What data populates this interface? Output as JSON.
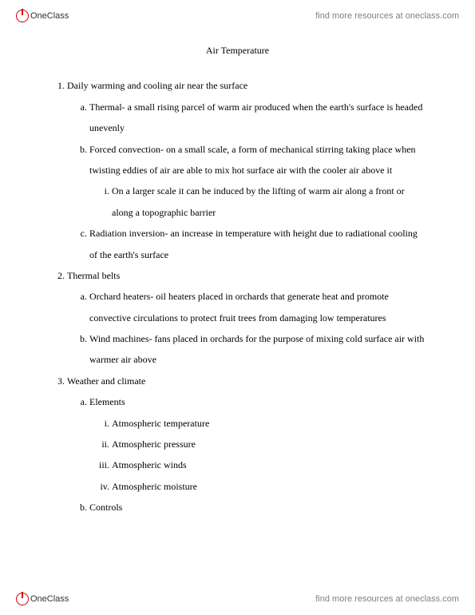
{
  "brand": {
    "name": "OneClass",
    "link_text": "find more resources at oneclass.com"
  },
  "doc": {
    "title": "Air Temperature"
  },
  "outline": {
    "s1": {
      "h": "Daily warming and cooling air near the surface",
      "a": "Thermal- a small rising parcel of warm air produced when the earth's surface is headed unevenly",
      "b": "Forced convection- on a small scale, a form of mechanical stirring taking place when twisting eddies of air are able to mix hot surface air with the cooler air above it",
      "b_i": "On a larger scale it can be induced by the lifting of warm air along a front or along a topographic barrier",
      "c": "Radiation inversion- an increase in temperature with height due to radiational cooling of the earth's surface"
    },
    "s2": {
      "h": "Thermal belts",
      "a": "Orchard heaters- oil heaters placed in orchards that generate heat and promote convective circulations to protect fruit trees from damaging low temperatures",
      "b": "Wind machines- fans placed in orchards for the purpose of mixing cold surface air with warmer air above"
    },
    "s3": {
      "h": "Weather and climate",
      "a": "Elements",
      "a_i": "Atmospheric temperature",
      "a_ii": "Atmospheric pressure",
      "a_iii": "Atmospheric winds",
      "a_iv": "Atmospheric moisture",
      "b": "Controls"
    }
  }
}
